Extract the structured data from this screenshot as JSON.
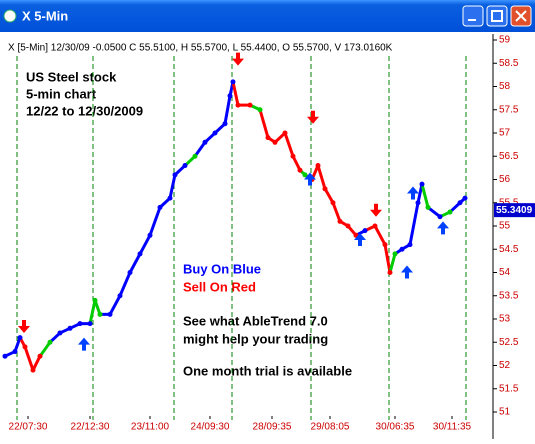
{
  "chart_data": {
    "type": "line",
    "window_title": "X 5-Min",
    "header": "X [5-Min] 12/30/09 -0.0500 C 55.5100, H 55.5700, L 55.4400, O 55.5700, V 173.0160K",
    "annotations": [
      "US Steel stock",
      "5-min chart",
      "12/22 to 12/30/2009"
    ],
    "legend_texts": [
      "Buy On Blue",
      "Sell On Red"
    ],
    "promo": [
      "See what AbleTrend 7.0",
      "might help your trading",
      "One month trial is available"
    ],
    "last_value": 55.3409,
    "xlim": [
      0,
      488
    ],
    "ylim": [
      51,
      59
    ],
    "yticks": [
      51,
      51.5,
      52,
      52.5,
      53,
      53.5,
      54,
      54.5,
      55,
      55.5,
      56,
      56.5,
      57,
      57.5,
      58,
      58.5,
      59
    ],
    "xticks": [
      {
        "value": 23,
        "label": "22/07:30"
      },
      {
        "value": 85,
        "label": "22/12:30"
      },
      {
        "value": 145,
        "label": "23/11:00"
      },
      {
        "value": 205,
        "label": "24/09:30"
      },
      {
        "value": 267,
        "label": "28/09:35"
      },
      {
        "value": 325,
        "label": "29/08:05"
      },
      {
        "value": 390,
        "label": "30/06:35"
      },
      {
        "value": 447,
        "label": "30/11:35"
      }
    ],
    "session_lines": [
      12,
      88,
      169,
      227,
      306,
      384,
      461
    ],
    "series": [
      {
        "x": [
          0,
          10,
          15,
          20,
          28,
          35,
          45,
          55,
          65,
          75,
          85,
          90,
          95,
          105,
          115,
          125,
          135,
          145,
          155,
          165,
          170,
          180,
          190,
          200,
          210,
          220,
          225,
          228,
          233,
          245,
          255,
          263,
          270,
          280,
          288,
          295,
          300,
          307,
          313,
          320,
          328,
          335,
          343,
          351,
          360,
          370,
          380,
          385,
          390,
          397,
          405,
          413,
          417,
          423,
          435,
          445,
          455,
          460
        ],
        "values": [
          52.2,
          52.3,
          52.6,
          52.4,
          51.9,
          52.2,
          52.5,
          52.7,
          52.8,
          52.9,
          52.9,
          53.4,
          53.1,
          53.1,
          53.5,
          54.0,
          54.4,
          54.8,
          55.4,
          55.6,
          56.1,
          56.3,
          56.5,
          56.8,
          57.0,
          57.2,
          57.8,
          58.1,
          57.6,
          57.6,
          57.5,
          56.9,
          56.8,
          57.0,
          56.5,
          56.2,
          56.1,
          56.0,
          56.3,
          55.8,
          55.5,
          55.1,
          55.0,
          54.8,
          54.9,
          55.0,
          54.6,
          54.0,
          54.4,
          54.5,
          54.6,
          55.5,
          55.9,
          55.4,
          55.2,
          55.3,
          55.5,
          55.6
        ],
        "colors": [
          "#0000ff",
          "#0000ff",
          "#0000ff",
          "#ff0000",
          "#ff0000",
          "#ff0000",
          "#00cc00",
          "#0000ff",
          "#0000ff",
          "#0000ff",
          "#0000ff",
          "#00cc00",
          "#00cc00",
          "#0000ff",
          "#0000ff",
          "#0000ff",
          "#0000ff",
          "#0000ff",
          "#0000ff",
          "#0000ff",
          "#0000ff",
          "#0000ff",
          "#00cc00",
          "#0000ff",
          "#0000ff",
          "#0000ff",
          "#0000ff",
          "#0000ff",
          "#ff0000",
          "#ff0000",
          "#00cc00",
          "#ff0000",
          "#ff0000",
          "#ff0000",
          "#ff0000",
          "#ff0000",
          "#00cc00",
          "#ff0000",
          "#ff0000",
          "#ff0000",
          "#ff0000",
          "#ff0000",
          "#ff0000",
          "#ff0000",
          "#0000ff",
          "#ff0000",
          "#ff0000",
          "#ff0000",
          "#00cc00",
          "#0000ff",
          "#0000ff",
          "#0000ff",
          "#0000ff",
          "#00cc00",
          "#0000ff",
          "#00cc00",
          "#0000ff",
          "#0000ff"
        ]
      }
    ],
    "buy_x": [
      79,
      305,
      355,
      402,
      408,
      438
    ],
    "buy": [
      52.6,
      56.15,
      54.85,
      54.15,
      55.85,
      55.1
    ],
    "sell_x": [
      19,
      233,
      308,
      371
    ],
    "sell": [
      52.7,
      58.45,
      57.2,
      55.2
    ]
  }
}
